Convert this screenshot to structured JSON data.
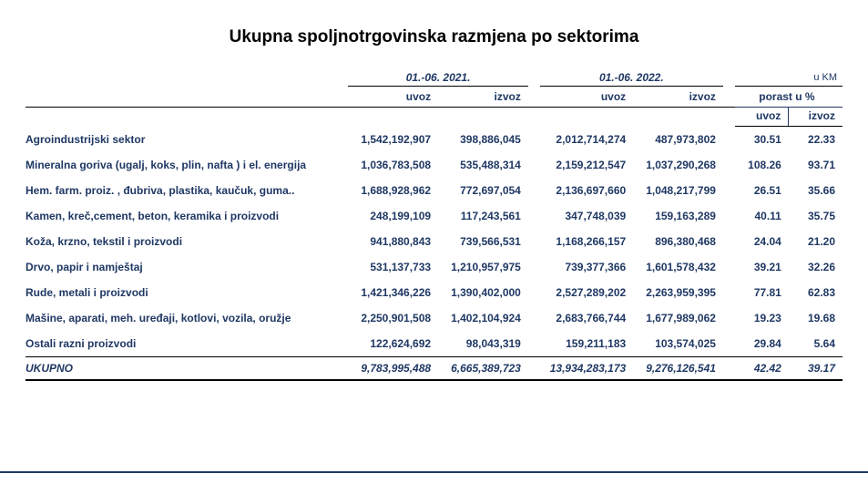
{
  "title": "Ukupna spoljnotrgovinska razmjena po sektorima",
  "header": {
    "period_2021": "01.-06. 2021.",
    "period_2022": "01.-06. 2022.",
    "currency_note": "u KM",
    "uvoz": "uvoz",
    "izvoz": "izvoz",
    "porast": "porast u %"
  },
  "colors": {
    "text_blue": "#1f3864",
    "rule_black": "#000000",
    "background": "#ffffff"
  },
  "typography": {
    "title_fontsize": 19,
    "body_fontsize": 12,
    "font_family": "Arial"
  },
  "rows": [
    {
      "sector": "Agroindustrijski sektor",
      "uvoz21": "1,542,192,907",
      "izvoz21": "398,886,045",
      "uvoz22": "2,012,714,274",
      "izvoz22": "487,973,802",
      "pct_uvoz": "30.51",
      "pct_izvoz": "22.33"
    },
    {
      "sector": "Mineralna goriva (ugalj, koks, plin, nafta ) i el. energija",
      "uvoz21": "1,036,783,508",
      "izvoz21": "535,488,314",
      "uvoz22": "2,159,212,547",
      "izvoz22": "1,037,290,268",
      "pct_uvoz": "108.26",
      "pct_izvoz": "93.71"
    },
    {
      "sector": "Hem. farm. proiz. , đubriva, plastika, kaučuk, guma..",
      "uvoz21": "1,688,928,962",
      "izvoz21": "772,697,054",
      "uvoz22": "2,136,697,660",
      "izvoz22": "1,048,217,799",
      "pct_uvoz": "26.51",
      "pct_izvoz": "35.66"
    },
    {
      "sector": "Kamen, kreč,cement, beton, keramika i proizvodi",
      "uvoz21": "248,199,109",
      "izvoz21": "117,243,561",
      "uvoz22": "347,748,039",
      "izvoz22": "159,163,289",
      "pct_uvoz": "40.11",
      "pct_izvoz": "35.75"
    },
    {
      "sector": "Koža, krzno, tekstil i proizvodi",
      "uvoz21": "941,880,843",
      "izvoz21": "739,566,531",
      "uvoz22": "1,168,266,157",
      "izvoz22": "896,380,468",
      "pct_uvoz": "24.04",
      "pct_izvoz": "21.20"
    },
    {
      "sector": "Drvo, papir i namještaj",
      "uvoz21": "531,137,733",
      "izvoz21": "1,210,957,975",
      "uvoz22": "739,377,366",
      "izvoz22": "1,601,578,432",
      "pct_uvoz": "39.21",
      "pct_izvoz": "32.26"
    },
    {
      "sector": "Rude, metali i proizvodi",
      "uvoz21": "1,421,346,226",
      "izvoz21": "1,390,402,000",
      "uvoz22": "2,527,289,202",
      "izvoz22": "2,263,959,395",
      "pct_uvoz": "77.81",
      "pct_izvoz": "62.83"
    },
    {
      "sector": "Mašine, aparati, meh. uređaji, kotlovi, vozila, oružje",
      "uvoz21": "2,250,901,508",
      "izvoz21": "1,402,104,924",
      "uvoz22": "2,683,766,744",
      "izvoz22": "1,677,989,062",
      "pct_uvoz": "19.23",
      "pct_izvoz": "19.68"
    },
    {
      "sector": "Ostali razni proizvodi",
      "uvoz21": "122,624,692",
      "izvoz21": "98,043,319",
      "uvoz22": "159,211,183",
      "izvoz22": "103,574,025",
      "pct_uvoz": "29.84",
      "pct_izvoz": "5.64"
    }
  ],
  "total": {
    "label": "UKUPNO",
    "uvoz21": "9,783,995,488",
    "izvoz21": "6,665,389,723",
    "uvoz22": "13,934,283,173",
    "izvoz22": "9,276,126,541",
    "pct_uvoz": "42.42",
    "pct_izvoz": "39.17"
  }
}
